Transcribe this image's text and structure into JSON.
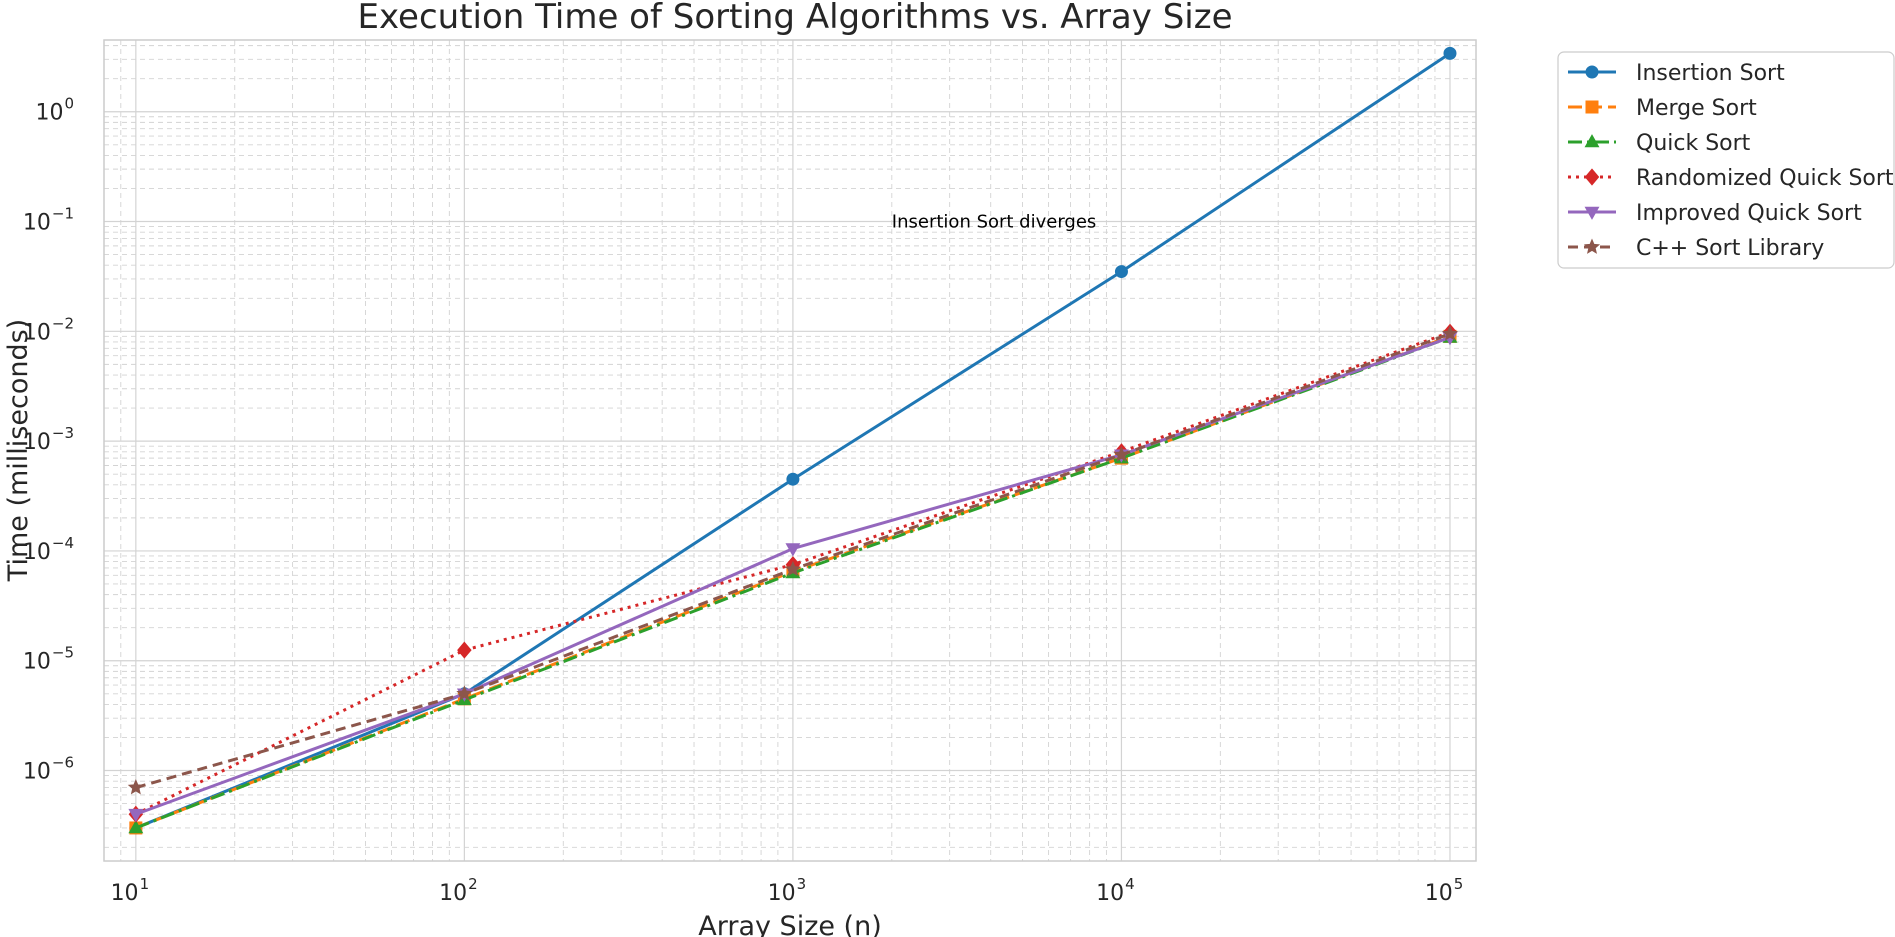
{
  "chart_data": {
    "type": "line",
    "title": "Execution Time of Sorting Algorithms vs. Array Size",
    "xlabel": "Array Size (n)",
    "ylabel": "Time (milliseconds)",
    "x_scale": "log",
    "y_scale": "log",
    "xlim": [
      8,
      120000
    ],
    "ylim": [
      1.5e-07,
      4.5
    ],
    "x": [
      10,
      100,
      1000,
      10000,
      100000
    ],
    "x_ticks": [
      {
        "value": 10,
        "base": "10",
        "exp": "1"
      },
      {
        "value": 100,
        "base": "10",
        "exp": "2"
      },
      {
        "value": 1000,
        "base": "10",
        "exp": "3"
      },
      {
        "value": 10000,
        "base": "10",
        "exp": "4"
      },
      {
        "value": 100000,
        "base": "10",
        "exp": "5"
      }
    ],
    "y_ticks": [
      {
        "value": 1e-06,
        "base": "10",
        "exp": "−6"
      },
      {
        "value": 1e-05,
        "base": "10",
        "exp": "−5"
      },
      {
        "value": 0.0001,
        "base": "10",
        "exp": "−4"
      },
      {
        "value": 0.001,
        "base": "10",
        "exp": "−3"
      },
      {
        "value": 0.01,
        "base": "10",
        "exp": "−2"
      },
      {
        "value": 0.1,
        "base": "10",
        "exp": "−1"
      },
      {
        "value": 1,
        "base": "10",
        "exp": "0"
      }
    ],
    "grid": true,
    "grid_minor": true,
    "legend_position": "outside-top-right",
    "series": [
      {
        "name": "Insertion Sort",
        "values": [
          3e-07,
          5e-06,
          0.00045,
          0.035,
          3.4
        ],
        "color": "#1f77b4",
        "dash": "",
        "marker": "circle"
      },
      {
        "name": "Merge Sort",
        "values": [
          3e-07,
          4.5e-06,
          6.5e-05,
          0.0007,
          0.009
        ],
        "color": "#ff7f0e",
        "dash": "14,6",
        "marker": "square"
      },
      {
        "name": "Quick Sort",
        "values": [
          3e-07,
          4.4e-06,
          6.3e-05,
          0.0007,
          0.0088
        ],
        "color": "#2ca02c",
        "dash": "14,5,3,5",
        "marker": "triangle-up"
      },
      {
        "name": "Randomized Quick Sort",
        "values": [
          4e-07,
          1.25e-05,
          7.5e-05,
          0.0008,
          0.0098
        ],
        "color": "#d62728",
        "dash": "3,5",
        "marker": "diamond"
      },
      {
        "name": "Improved Quick Sort",
        "values": [
          4e-07,
          5e-06,
          0.000105,
          0.00075,
          0.0088
        ],
        "color": "#9467bd",
        "dash": "",
        "marker": "triangle-down"
      },
      {
        "name": "C++ Sort Library",
        "values": [
          7e-07,
          5e-06,
          6.8e-05,
          0.00075,
          0.0095
        ],
        "color": "#8c564b",
        "dash": "10,6",
        "marker": "star"
      }
    ],
    "annotations": [
      {
        "text": "Insertion Sort diverges",
        "x": 2000,
        "y": 0.1
      }
    ]
  }
}
